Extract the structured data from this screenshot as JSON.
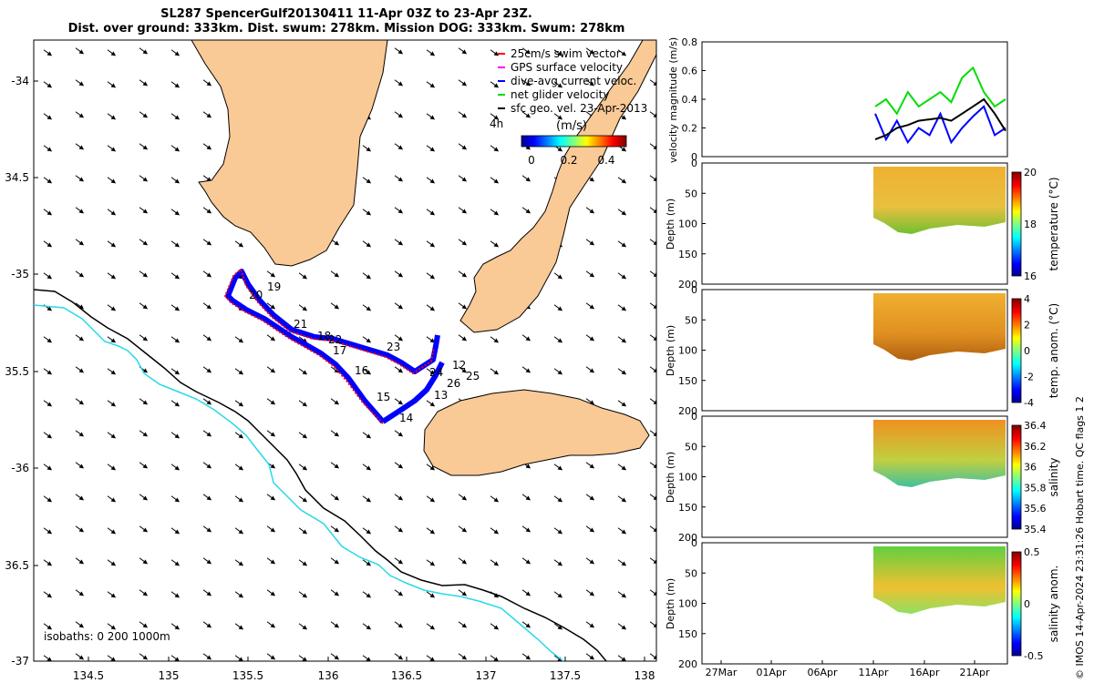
{
  "title": {
    "line1": "SL287 SpencerGulf20130411 11-Apr 03Z to 23-Apr 23Z.",
    "line2": "Dist. over ground: 333km. Dist. swum: 278km. Mission DOG: 333km. Swum: 278km"
  },
  "map": {
    "lat_ticks": [
      "-34",
      "34.5",
      "-35",
      "35.5",
      "-36",
      "36.5",
      "-37"
    ],
    "lon_ticks": [
      "134.5",
      "135",
      "135.5",
      "136",
      "136.5",
      "137",
      "137.5",
      "138"
    ],
    "isobaths_label": "isobaths: 0   200  1000m",
    "legend": [
      {
        "label": "25cm/s swim vector",
        "color": "#ff0000"
      },
      {
        "label": "GPS surface velocity",
        "color": "#ff00ff"
      },
      {
        "label": "dive-avg current veloc.",
        "color": "#0000ff"
      },
      {
        "label": "net glider velocity",
        "color": "#00dd00"
      },
      {
        "label": "sfc geo. vel. 23-Apr-2013",
        "color": "#000000"
      }
    ],
    "interval_label": "4h",
    "colorbar": {
      "unit": "(m/s)",
      "ticks": [
        "0",
        "0.2",
        "0.4"
      ]
    },
    "day_labels": [
      "19",
      "20",
      "21",
      "18",
      "22",
      "17",
      "23",
      "16",
      "24",
      "12",
      "25",
      "26",
      "15",
      "13",
      "14"
    ],
    "colors": {
      "land": "#f9c996",
      "track": "#0000ff",
      "swim": "#ff0000",
      "isobath_shallow": "#27d9e8",
      "isobath_deep": "#000000"
    }
  },
  "velocity_panel": {
    "ylabel": "velocity magnitude (m/s)",
    "y_ticks": [
      "0",
      "0.2",
      "0.4",
      "0.6",
      "0.8"
    ],
    "ylim": [
      0,
      0.8
    ]
  },
  "depth_panels": [
    {
      "ylabel": "Depth (m)",
      "y_ticks": [
        "0",
        "50",
        "100",
        "150",
        "200"
      ],
      "cbar_label": "temperature (°C)",
      "cbar_ticks": [
        "20",
        "18",
        "16"
      ]
    },
    {
      "ylabel": "Depth (m)",
      "y_ticks": [
        "0",
        "50",
        "100",
        "150",
        "200"
      ],
      "cbar_label": "temp. anom. (°C)",
      "cbar_ticks": [
        "4",
        "2",
        "0",
        "-2",
        "-4"
      ]
    },
    {
      "ylabel": "Depth (m)",
      "y_ticks": [
        "0",
        "50",
        "100",
        "150",
        "200"
      ],
      "cbar_label": "salinity",
      "cbar_ticks": [
        "36.4",
        "36.2",
        "36",
        "35.8",
        "35.6",
        "35.4"
      ]
    },
    {
      "ylabel": "Depth (m)",
      "y_ticks": [
        "0",
        "50",
        "100",
        "150",
        "200"
      ],
      "cbar_label": "salinity anom.",
      "cbar_ticks": [
        "0.5",
        "0",
        "-0.5"
      ]
    }
  ],
  "time_ticks": [
    "27Mar",
    "01Apr",
    "06Apr",
    "11Apr",
    "16Apr",
    "21Apr"
  ],
  "qc_label": "Hobart time. QC flags 1  2",
  "credit": "© IMOS 14-Apr-2024 23:31:26",
  "chart_data": [
    {
      "type": "line",
      "title": "",
      "xlabel": "",
      "ylabel": "velocity magnitude (m/s)",
      "ylim": [
        0,
        0.8
      ],
      "x": [
        "11Apr",
        "12Apr",
        "13Apr",
        "14Apr",
        "15Apr",
        "16Apr",
        "17Apr",
        "18Apr",
        "19Apr",
        "20Apr",
        "21Apr",
        "22Apr",
        "23Apr"
      ],
      "series": [
        {
          "name": "net glider velocity",
          "color": "#00dd00",
          "values": [
            0.35,
            0.4,
            0.3,
            0.45,
            0.35,
            0.4,
            0.45,
            0.38,
            0.55,
            0.62,
            0.45,
            0.35,
            0.4
          ]
        },
        {
          "name": "dive-avg current veloc.",
          "color": "#0000ff",
          "values": [
            0.3,
            0.12,
            0.25,
            0.1,
            0.2,
            0.15,
            0.3,
            0.1,
            0.2,
            0.28,
            0.35,
            0.15,
            0.2
          ]
        },
        {
          "name": "sfc geo. vel.",
          "color": "#000000",
          "values": [
            0.12,
            0.15,
            0.2,
            0.22,
            0.25,
            0.26,
            0.27,
            0.25,
            0.3,
            0.35,
            0.4,
            0.3,
            0.18
          ]
        }
      ]
    }
  ]
}
